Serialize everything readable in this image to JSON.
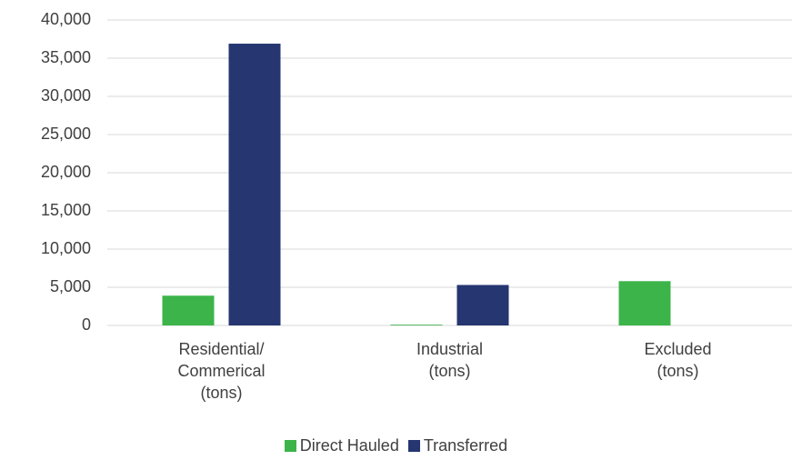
{
  "chart_data": {
    "type": "bar",
    "categories": [
      "Residential/ Commerical (tons)",
      "Industrial (tons)",
      "Excluded (tons)"
    ],
    "series": [
      {
        "name": "Direct Hauled",
        "color": "#3cb44a",
        "values": [
          3900,
          100,
          5800
        ]
      },
      {
        "name": "Transferred",
        "color": "#253670",
        "values": [
          36900,
          5300,
          0
        ]
      }
    ],
    "ylim": [
      0,
      40000
    ],
    "yticks": [
      0,
      {
        "value": 5000,
        "label": "5,000"
      },
      {
        "value": 10000,
        "label": "10,000"
      },
      {
        "value": 15000,
        "label": "15,000"
      },
      {
        "value": 20000,
        "label": "20,000"
      },
      {
        "value": 25000,
        "label": "25,000"
      },
      {
        "value": 30000,
        "label": "30,000"
      },
      {
        "value": 35000,
        "label": "35,000"
      },
      {
        "value": 40000,
        "label": "40,000"
      }
    ],
    "grid": true,
    "legend": "bottom"
  }
}
